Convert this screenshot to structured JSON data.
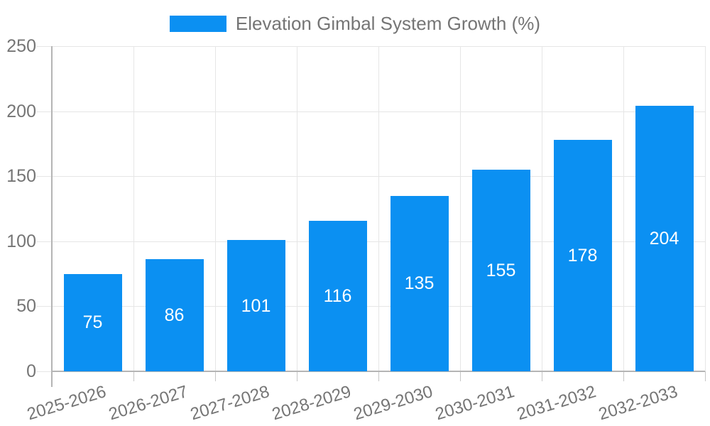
{
  "chart_data": {
    "type": "bar",
    "title": "",
    "legend_label": "Elevation Gimbal System Growth (%)",
    "legend_position": "top-center",
    "categories": [
      "2025-2026",
      "2026-2027",
      "2027-2028",
      "2028-2029",
      "2029-2030",
      "2030-2031",
      "2031-2032",
      "2032-2033"
    ],
    "values": [
      75,
      86,
      101,
      116,
      135,
      155,
      178,
      204
    ],
    "xlabel": "",
    "ylabel": "",
    "ylim": [
      0,
      250
    ],
    "yticks": [
      0,
      50,
      100,
      150,
      200,
      250
    ],
    "grid": true,
    "colors": {
      "bar": "#0b90f2",
      "value_label": "#ffffff",
      "axis_text": "#757575",
      "grid_line": "#e6e6e6",
      "axis_line": "#b5b5b5",
      "background": "#ffffff"
    }
  }
}
